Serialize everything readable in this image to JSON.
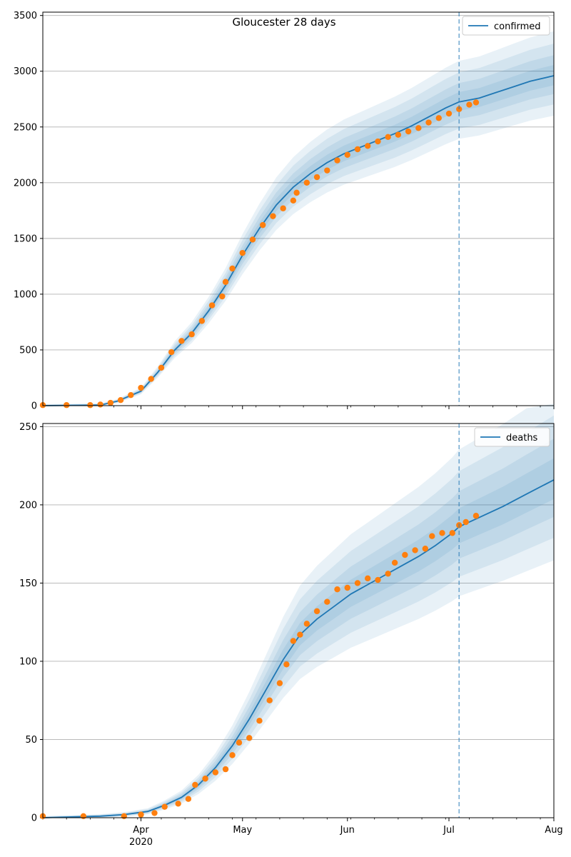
{
  "chart_data": [
    {
      "type": "line",
      "title": "Gloucester 28 days",
      "xlabel": "",
      "ylabel": "",
      "ylim": [
        0,
        3530
      ],
      "yticks": [
        0,
        500,
        1000,
        1500,
        2000,
        2500,
        3000,
        3500
      ],
      "xlim": [
        "2020-03-03",
        "2020-08-01"
      ],
      "xtick_labels": [
        {
          "date": "2020-04-01",
          "label": "Apr",
          "sublabel": "2020"
        },
        {
          "date": "2020-05-01",
          "label": "May",
          "sublabel": ""
        },
        {
          "date": "2020-06-01",
          "label": "Jun",
          "sublabel": ""
        },
        {
          "date": "2020-07-01",
          "label": "Jul",
          "sublabel": ""
        },
        {
          "date": "2020-08-01",
          "label": "Aug",
          "sublabel": ""
        }
      ],
      "grid": "horizontal",
      "legend_position": "top-right",
      "cutoff_date": "2020-07-04",
      "series": [
        {
          "name": "confirmed",
          "kind": "model",
          "color": "#1f77b4",
          "points": [
            [
              "2020-03-03",
              0
            ],
            [
              "2020-03-20",
              5
            ],
            [
              "2020-03-25",
              40
            ],
            [
              "2020-04-01",
              130
            ],
            [
              "2020-04-06",
              300
            ],
            [
              "2020-04-11",
              500
            ],
            [
              "2020-04-16",
              650
            ],
            [
              "2020-04-21",
              850
            ],
            [
              "2020-04-26",
              1080
            ],
            [
              "2020-05-01",
              1350
            ],
            [
              "2020-05-06",
              1590
            ],
            [
              "2020-05-11",
              1800
            ],
            [
              "2020-05-16",
              1960
            ],
            [
              "2020-05-21",
              2080
            ],
            [
              "2020-05-26",
              2180
            ],
            [
              "2020-05-31",
              2260
            ],
            [
              "2020-06-05",
              2320
            ],
            [
              "2020-06-10",
              2380
            ],
            [
              "2020-06-15",
              2440
            ],
            [
              "2020-06-20",
              2510
            ],
            [
              "2020-06-25",
              2590
            ],
            [
              "2020-06-30",
              2670
            ],
            [
              "2020-07-04",
              2725
            ],
            [
              "2020-07-10",
              2760
            ],
            [
              "2020-07-15",
              2810
            ],
            [
              "2020-07-20",
              2860
            ],
            [
              "2020-07-25",
              2910
            ],
            [
              "2020-08-01",
              2960
            ]
          ]
        },
        {
          "name": "",
          "kind": "observed",
          "color": "#ff7f0e",
          "points": [
            [
              "2020-03-03",
              5
            ],
            [
              "2020-03-10",
              5
            ],
            [
              "2020-03-17",
              5
            ],
            [
              "2020-03-20",
              10
            ],
            [
              "2020-03-23",
              25
            ],
            [
              "2020-03-26",
              50
            ],
            [
              "2020-03-29",
              95
            ],
            [
              "2020-04-01",
              160
            ],
            [
              "2020-04-04",
              240
            ],
            [
              "2020-04-07",
              340
            ],
            [
              "2020-04-10",
              480
            ],
            [
              "2020-04-13",
              580
            ],
            [
              "2020-04-16",
              640
            ],
            [
              "2020-04-19",
              760
            ],
            [
              "2020-04-22",
              900
            ],
            [
              "2020-04-25",
              980
            ],
            [
              "2020-04-26",
              1110
            ],
            [
              "2020-04-28",
              1230
            ],
            [
              "2020-05-01",
              1370
            ],
            [
              "2020-05-04",
              1490
            ],
            [
              "2020-05-07",
              1620
            ],
            [
              "2020-05-10",
              1700
            ],
            [
              "2020-05-13",
              1770
            ],
            [
              "2020-05-16",
              1840
            ],
            [
              "2020-05-17",
              1910
            ],
            [
              "2020-05-20",
              2000
            ],
            [
              "2020-05-23",
              2050
            ],
            [
              "2020-05-26",
              2110
            ],
            [
              "2020-05-29",
              2200
            ],
            [
              "2020-06-01",
              2250
            ],
            [
              "2020-06-04",
              2300
            ],
            [
              "2020-06-07",
              2330
            ],
            [
              "2020-06-10",
              2370
            ],
            [
              "2020-06-13",
              2410
            ],
            [
              "2020-06-16",
              2430
            ],
            [
              "2020-06-19",
              2460
            ],
            [
              "2020-06-22",
              2490
            ],
            [
              "2020-06-25",
              2540
            ],
            [
              "2020-06-28",
              2580
            ],
            [
              "2020-07-01",
              2620
            ],
            [
              "2020-07-04",
              2660
            ],
            [
              "2020-07-07",
              2700
            ],
            [
              "2020-07-09",
              2720
            ]
          ]
        }
      ]
    },
    {
      "type": "line",
      "title": "",
      "xlabel": "",
      "ylabel": "",
      "ylim": [
        0,
        252
      ],
      "yticks": [
        0,
        50,
        100,
        150,
        200,
        250
      ],
      "xlim": [
        "2020-03-03",
        "2020-08-01"
      ],
      "xtick_labels": [
        {
          "date": "2020-04-01",
          "label": "Apr",
          "sublabel": "2020"
        },
        {
          "date": "2020-05-01",
          "label": "May",
          "sublabel": ""
        },
        {
          "date": "2020-06-01",
          "label": "Jun",
          "sublabel": ""
        },
        {
          "date": "2020-07-01",
          "label": "Jul",
          "sublabel": ""
        },
        {
          "date": "2020-08-01",
          "label": "Aug",
          "sublabel": ""
        }
      ],
      "grid": "horizontal",
      "legend_position": "top-right",
      "cutoff_date": "2020-07-04",
      "series": [
        {
          "name": "deaths",
          "kind": "model",
          "color": "#1f77b4",
          "points": [
            [
              "2020-03-03",
              0
            ],
            [
              "2020-03-20",
              1
            ],
            [
              "2020-03-27",
              2
            ],
            [
              "2020-04-03",
              4
            ],
            [
              "2020-04-08",
              8
            ],
            [
              "2020-04-13",
              13
            ],
            [
              "2020-04-18",
              21
            ],
            [
              "2020-04-23",
              32
            ],
            [
              "2020-04-28",
              46
            ],
            [
              "2020-05-03",
              63
            ],
            [
              "2020-05-08",
              82
            ],
            [
              "2020-05-13",
              101
            ],
            [
              "2020-05-18",
              117
            ],
            [
              "2020-05-23",
              127
            ],
            [
              "2020-05-28",
              135
            ],
            [
              "2020-06-02",
              143
            ],
            [
              "2020-06-07",
              149
            ],
            [
              "2020-06-12",
              155
            ],
            [
              "2020-06-17",
              161
            ],
            [
              "2020-06-22",
              167
            ],
            [
              "2020-06-27",
              174
            ],
            [
              "2020-07-02",
              182
            ],
            [
              "2020-07-04",
              186
            ],
            [
              "2020-07-10",
              192
            ],
            [
              "2020-07-17",
              199
            ],
            [
              "2020-07-24",
              207
            ],
            [
              "2020-08-01",
              216
            ]
          ]
        },
        {
          "name": "",
          "kind": "observed",
          "color": "#ff7f0e",
          "points": [
            [
              "2020-03-03",
              1
            ],
            [
              "2020-03-15",
              1
            ],
            [
              "2020-03-27",
              1
            ],
            [
              "2020-04-01",
              2
            ],
            [
              "2020-04-05",
              3
            ],
            [
              "2020-04-08",
              7
            ],
            [
              "2020-04-12",
              9
            ],
            [
              "2020-04-15",
              12
            ],
            [
              "2020-04-17",
              21
            ],
            [
              "2020-04-20",
              25
            ],
            [
              "2020-04-23",
              29
            ],
            [
              "2020-04-26",
              31
            ],
            [
              "2020-04-28",
              40
            ],
            [
              "2020-04-30",
              48
            ],
            [
              "2020-05-03",
              51
            ],
            [
              "2020-05-06",
              62
            ],
            [
              "2020-05-09",
              75
            ],
            [
              "2020-05-12",
              86
            ],
            [
              "2020-05-14",
              98
            ],
            [
              "2020-05-16",
              113
            ],
            [
              "2020-05-18",
              117
            ],
            [
              "2020-05-20",
              124
            ],
            [
              "2020-05-23",
              132
            ],
            [
              "2020-05-26",
              138
            ],
            [
              "2020-05-29",
              146
            ],
            [
              "2020-06-01",
              147
            ],
            [
              "2020-06-04",
              150
            ],
            [
              "2020-06-07",
              153
            ],
            [
              "2020-06-10",
              152
            ],
            [
              "2020-06-13",
              156
            ],
            [
              "2020-06-15",
              163
            ],
            [
              "2020-06-18",
              168
            ],
            [
              "2020-06-21",
              171
            ],
            [
              "2020-06-24",
              172
            ],
            [
              "2020-06-26",
              180
            ],
            [
              "2020-06-29",
              182
            ],
            [
              "2020-07-02",
              182
            ],
            [
              "2020-07-04",
              187
            ],
            [
              "2020-07-06",
              189
            ],
            [
              "2020-07-09",
              193
            ]
          ]
        }
      ]
    }
  ]
}
